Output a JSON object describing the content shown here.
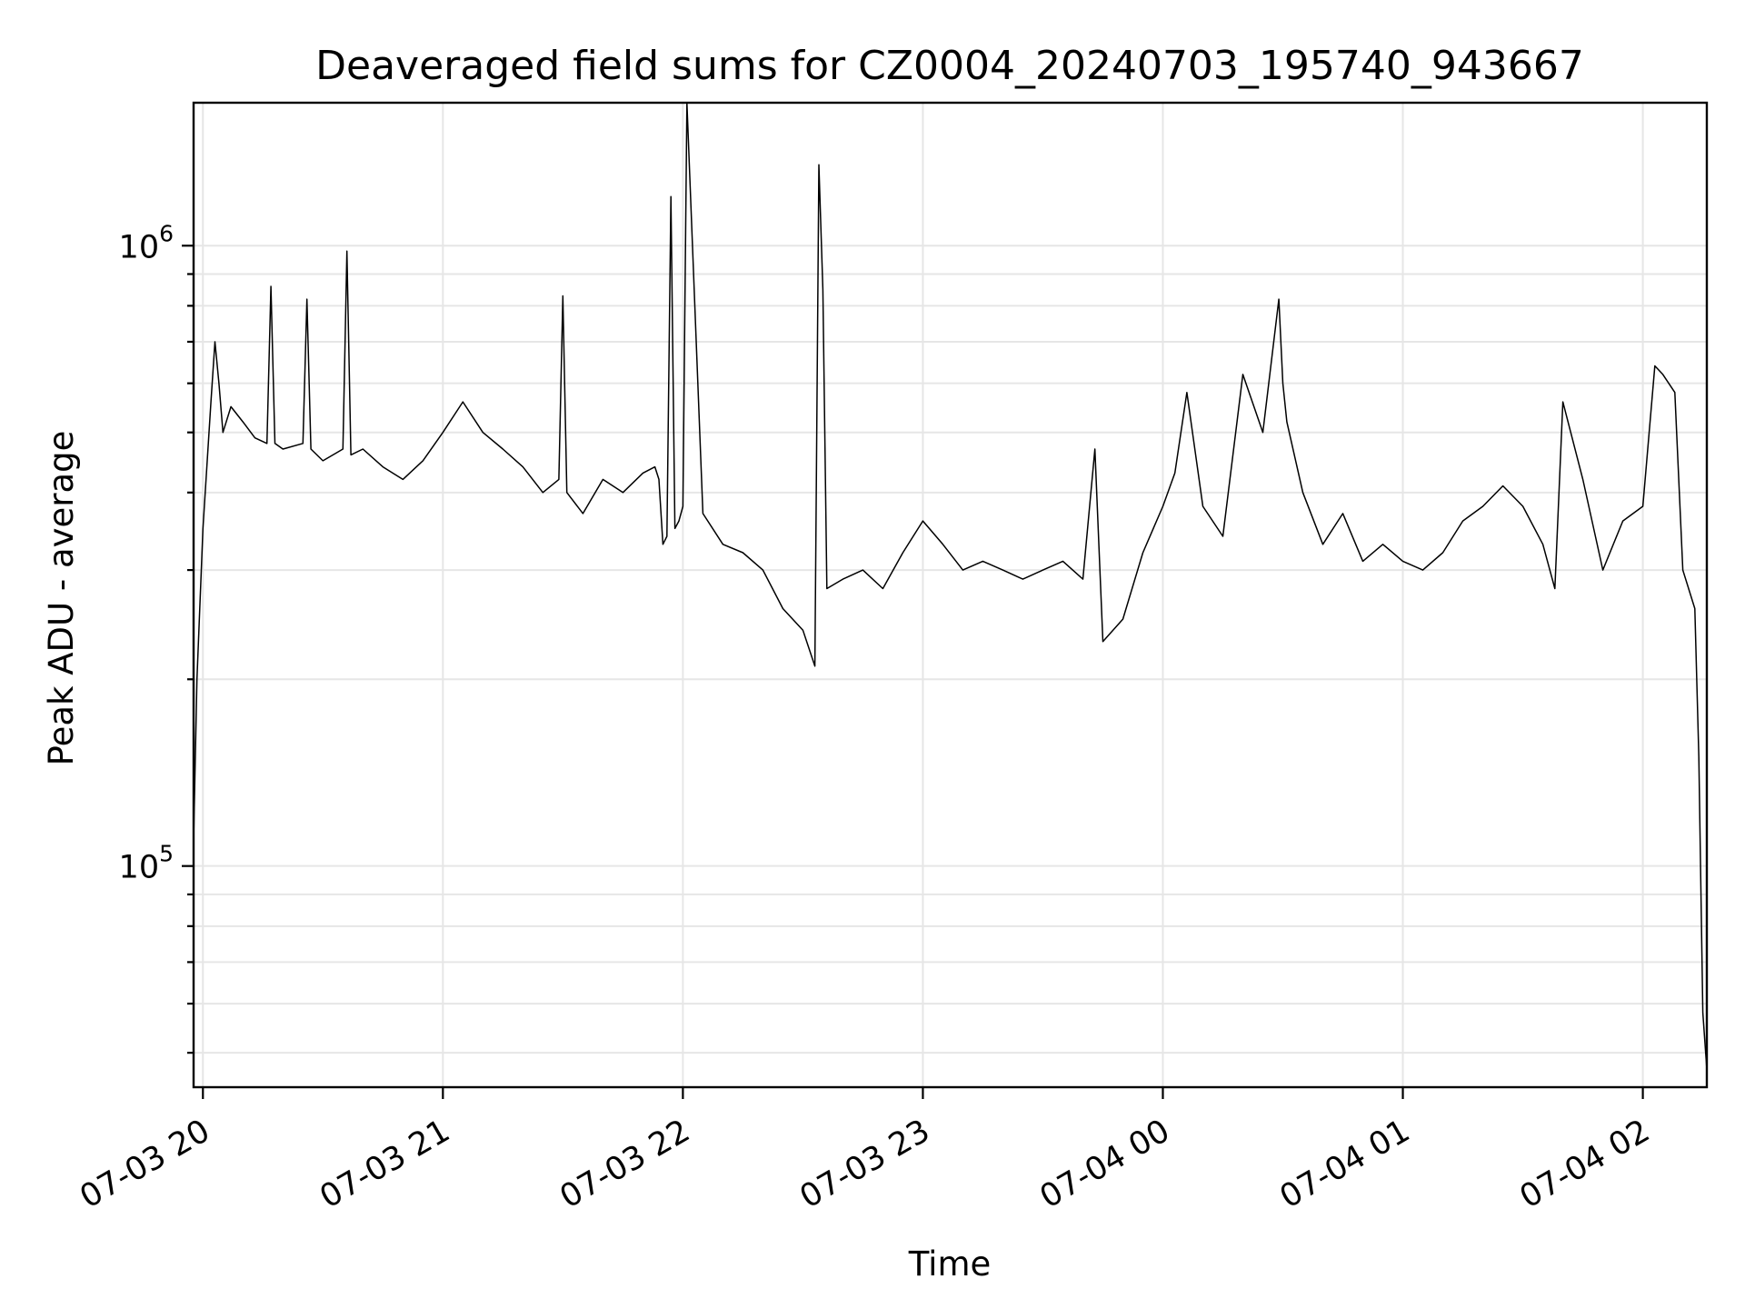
{
  "chart_data": {
    "type": "line",
    "title": "Deaveraged field sums for CZ0004_20240703_195740_943667",
    "xlabel": "Time",
    "ylabel": "Peak ADU - average",
    "yscale": "log",
    "ylim": [
      44000,
      1700000
    ],
    "xlim": [
      "2024-07-03 19:57:40",
      "2024-07-04 02:16:00"
    ],
    "grid": true,
    "line_color": "#000000",
    "x_ticks": [
      {
        "value": "2024-07-03 20:00",
        "label": "07-03 20"
      },
      {
        "value": "2024-07-03 21:00",
        "label": "07-03 21"
      },
      {
        "value": "2024-07-03 22:00",
        "label": "07-03 22"
      },
      {
        "value": "2024-07-03 23:00",
        "label": "07-03 23"
      },
      {
        "value": "2024-07-04 00:00",
        "label": "07-04 00"
      },
      {
        "value": "2024-07-04 01:00",
        "label": "07-04 01"
      },
      {
        "value": "2024-07-04 02:00",
        "label": "07-04 02"
      }
    ],
    "y_ticks": [
      {
        "value": 100000,
        "base": "10",
        "exp": "5"
      },
      {
        "value": 1000000,
        "base": "10",
        "exp": "6"
      }
    ],
    "series": [
      {
        "x": [
          "2024-07-03 19:57:40",
          "2024-07-03 19:58:30",
          "2024-07-03 20:00:00",
          "2024-07-03 20:02:00",
          "2024-07-03 20:03:00",
          "2024-07-03 20:04:00",
          "2024-07-03 20:05:00",
          "2024-07-03 20:07:00",
          "2024-07-03 20:10:00",
          "2024-07-03 20:13:00",
          "2024-07-03 20:16:00",
          "2024-07-03 20:17:00",
          "2024-07-03 20:18:00",
          "2024-07-03 20:20:00",
          "2024-07-03 20:25:00",
          "2024-07-03 20:26:00",
          "2024-07-03 20:27:00",
          "2024-07-03 20:30:00",
          "2024-07-03 20:35:00",
          "2024-07-03 20:36:00",
          "2024-07-03 20:37:00",
          "2024-07-03 20:40:00",
          "2024-07-03 20:45:00",
          "2024-07-03 20:50:00",
          "2024-07-03 20:55:00",
          "2024-07-03 21:00:00",
          "2024-07-03 21:05:00",
          "2024-07-03 21:10:00",
          "2024-07-03 21:15:00",
          "2024-07-03 21:20:00",
          "2024-07-03 21:25:00",
          "2024-07-03 21:29:00",
          "2024-07-03 21:30:00",
          "2024-07-03 21:31:00",
          "2024-07-03 21:35:00",
          "2024-07-03 21:40:00",
          "2024-07-03 21:45:00",
          "2024-07-03 21:50:00",
          "2024-07-03 21:53:00",
          "2024-07-03 21:54:00",
          "2024-07-03 21:55:00",
          "2024-07-03 21:56:00",
          "2024-07-03 21:57:00",
          "2024-07-03 21:58:00",
          "2024-07-03 21:59:00",
          "2024-07-03 22:00:00",
          "2024-07-03 22:01:00",
          "2024-07-03 22:05:00",
          "2024-07-03 22:10:00",
          "2024-07-03 22:15:00",
          "2024-07-03 22:20:00",
          "2024-07-03 22:25:00",
          "2024-07-03 22:30:00",
          "2024-07-03 22:33:00",
          "2024-07-03 22:34:00",
          "2024-07-03 22:35:00",
          "2024-07-03 22:36:00",
          "2024-07-03 22:40:00",
          "2024-07-03 22:45:00",
          "2024-07-03 22:50:00",
          "2024-07-03 22:55:00",
          "2024-07-03 23:00:00",
          "2024-07-03 23:05:00",
          "2024-07-03 23:10:00",
          "2024-07-03 23:15:00",
          "2024-07-03 23:20:00",
          "2024-07-03 23:25:00",
          "2024-07-03 23:30:00",
          "2024-07-03 23:35:00",
          "2024-07-03 23:40:00",
          "2024-07-03 23:43:00",
          "2024-07-03 23:45:00",
          "2024-07-03 23:50:00",
          "2024-07-03 23:55:00",
          "2024-07-04 00:00:00",
          "2024-07-04 00:03:00",
          "2024-07-04 00:06:00",
          "2024-07-04 00:10:00",
          "2024-07-04 00:15:00",
          "2024-07-04 00:20:00",
          "2024-07-04 00:25:00",
          "2024-07-04 00:29:00",
          "2024-07-04 00:30:00",
          "2024-07-04 00:31:00",
          "2024-07-04 00:35:00",
          "2024-07-04 00:40:00",
          "2024-07-04 00:45:00",
          "2024-07-04 00:50:00",
          "2024-07-04 00:55:00",
          "2024-07-04 01:00:00",
          "2024-07-04 01:05:00",
          "2024-07-04 01:10:00",
          "2024-07-04 01:15:00",
          "2024-07-04 01:20:00",
          "2024-07-04 01:25:00",
          "2024-07-04 01:30:00",
          "2024-07-04 01:35:00",
          "2024-07-04 01:38:00",
          "2024-07-04 01:40:00",
          "2024-07-04 01:45:00",
          "2024-07-04 01:50:00",
          "2024-07-04 01:55:00",
          "2024-07-04 02:00:00",
          "2024-07-04 02:03:00",
          "2024-07-04 02:05:00",
          "2024-07-04 02:08:00",
          "2024-07-04 02:10:00",
          "2024-07-04 02:13:00",
          "2024-07-04 02:14:00",
          "2024-07-04 02:15:00",
          "2024-07-04 02:16:00"
        ],
        "y": [
          110000,
          200000,
          350000,
          560000,
          700000,
          600000,
          500000,
          550000,
          520000,
          490000,
          480000,
          860000,
          480000,
          470000,
          480000,
          820000,
          470000,
          450000,
          470000,
          980000,
          460000,
          470000,
          440000,
          420000,
          450000,
          500000,
          560000,
          500000,
          470000,
          440000,
          400000,
          420000,
          830000,
          400000,
          370000,
          420000,
          400000,
          430000,
          440000,
          420000,
          330000,
          340000,
          1200000,
          350000,
          360000,
          380000,
          1700000,
          370000,
          330000,
          320000,
          300000,
          260000,
          240000,
          210000,
          1350000,
          850000,
          280000,
          290000,
          300000,
          280000,
          320000,
          360000,
          330000,
          300000,
          310000,
          300000,
          290000,
          300000,
          310000,
          290000,
          470000,
          230000,
          250000,
          320000,
          380000,
          430000,
          580000,
          380000,
          340000,
          620000,
          500000,
          820000,
          600000,
          520000,
          400000,
          330000,
          370000,
          310000,
          330000,
          310000,
          300000,
          320000,
          360000,
          380000,
          410000,
          380000,
          330000,
          280000,
          560000,
          420000,
          300000,
          360000,
          380000,
          640000,
          620000,
          580000,
          300000,
          260000,
          150000,
          58000,
          47000
        ]
      }
    ]
  }
}
